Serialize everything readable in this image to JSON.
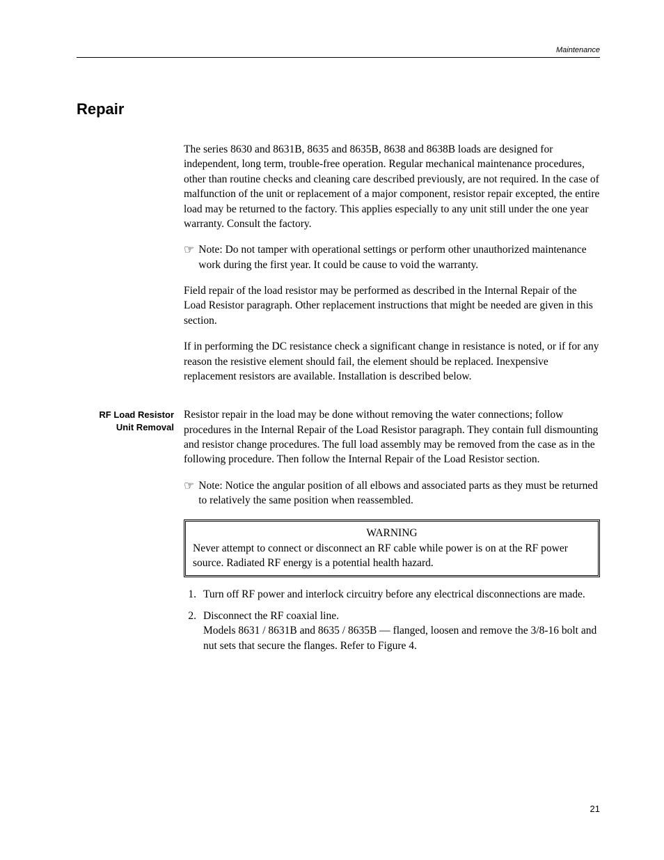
{
  "header": {
    "section_label": "Maintenance"
  },
  "section_title": "Repair",
  "intro": {
    "para1": "The series 8630 and 8631B, 8635 and 8635B, 8638 and 8638B loads are designed for independent, long term, trouble-free operation. Regular mechanical maintenance procedures, other than routine checks and cleaning care described previously, are not required. In the case of malfunction of the unit or replacement of a major component, resistor repair excepted, the entire load may be returned to the factory. This applies especially to any unit still under the one year warranty. Consult the factory.",
    "note1_prefix": "Note:",
    "note1_text": " Do not tamper with operational settings or perform other unauthorized maintenance work during the first year. It could be cause to void the warranty.",
    "para2": "Field repair of the load resistor may be performed as described in the Internal Repair of the Load Resistor paragraph. Other replacement instructions that might be needed are given in this section.",
    "para3": "If in performing the DC resistance check a significant change in resistance is noted, or if for any reason the resistive element should fail, the element should be replaced. Inexpensive replacement resistors are available. Installation is described below."
  },
  "rf_section": {
    "label_line1": "RF Load Resistor",
    "label_line2": "Unit Removal",
    "para1": "Resistor repair in the load may be done without removing the water connections; follow procedures in the Internal Repair of the Load Resistor paragraph. They contain full dismounting and resistor change procedures. The full load assembly may be removed from the case as in the following procedure. Then follow the Internal Repair of the Load Resistor section.",
    "note_prefix": "Note:",
    "note_text": " Notice the angular position of all elbows and associated parts as they must be returned to relatively the same position when reassembled.",
    "warning_title": "WARNING",
    "warning_text": "Never attempt to connect or disconnect an RF cable while power is on at the RF power source. Radiated RF energy is a potential health hazard.",
    "steps": [
      {
        "num": "1.",
        "text": "Turn off RF power and interlock circuitry before any electrical disconnections are made."
      },
      {
        "num": "2.",
        "text_line1": "Disconnect the RF coaxial line.",
        "text_line2": "Models 8631 / 8631B and 8635 / 8635B — flanged, loosen and remove the 3/8-16 bolt and nut sets that secure the flanges. Refer to Figure 4."
      }
    ]
  },
  "page_number": "21",
  "icons": {
    "pointing_hand": "☞"
  }
}
